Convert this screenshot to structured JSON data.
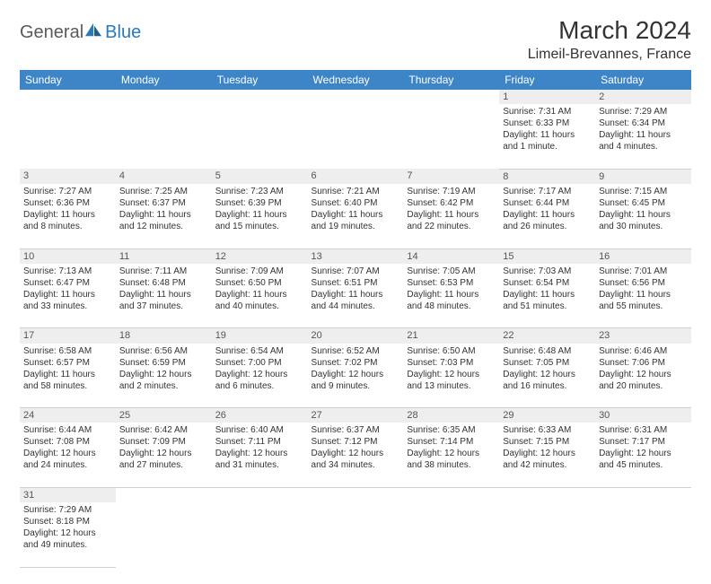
{
  "brand": {
    "part1": "General",
    "part2": "Blue"
  },
  "title": "March 2024",
  "location": "Limeil-Brevannes, France",
  "colors": {
    "header_bg": "#3d85c6",
    "header_text": "#ffffff",
    "daynum_bg": "#eeeeee",
    "text": "#333333",
    "logo_gray": "#5a5a5a",
    "logo_blue": "#2a79b8"
  },
  "weekdays": [
    "Sunday",
    "Monday",
    "Tuesday",
    "Wednesday",
    "Thursday",
    "Friday",
    "Saturday"
  ],
  "weeks": [
    [
      null,
      null,
      null,
      null,
      null,
      {
        "d": "1",
        "sr": "Sunrise: 7:31 AM",
        "ss": "Sunset: 6:33 PM",
        "dl1": "Daylight: 11 hours",
        "dl2": "and 1 minute."
      },
      {
        "d": "2",
        "sr": "Sunrise: 7:29 AM",
        "ss": "Sunset: 6:34 PM",
        "dl1": "Daylight: 11 hours",
        "dl2": "and 4 minutes."
      }
    ],
    [
      {
        "d": "3",
        "sr": "Sunrise: 7:27 AM",
        "ss": "Sunset: 6:36 PM",
        "dl1": "Daylight: 11 hours",
        "dl2": "and 8 minutes."
      },
      {
        "d": "4",
        "sr": "Sunrise: 7:25 AM",
        "ss": "Sunset: 6:37 PM",
        "dl1": "Daylight: 11 hours",
        "dl2": "and 12 minutes."
      },
      {
        "d": "5",
        "sr": "Sunrise: 7:23 AM",
        "ss": "Sunset: 6:39 PM",
        "dl1": "Daylight: 11 hours",
        "dl2": "and 15 minutes."
      },
      {
        "d": "6",
        "sr": "Sunrise: 7:21 AM",
        "ss": "Sunset: 6:40 PM",
        "dl1": "Daylight: 11 hours",
        "dl2": "and 19 minutes."
      },
      {
        "d": "7",
        "sr": "Sunrise: 7:19 AM",
        "ss": "Sunset: 6:42 PM",
        "dl1": "Daylight: 11 hours",
        "dl2": "and 22 minutes."
      },
      {
        "d": "8",
        "sr": "Sunrise: 7:17 AM",
        "ss": "Sunset: 6:44 PM",
        "dl1": "Daylight: 11 hours",
        "dl2": "and 26 minutes."
      },
      {
        "d": "9",
        "sr": "Sunrise: 7:15 AM",
        "ss": "Sunset: 6:45 PM",
        "dl1": "Daylight: 11 hours",
        "dl2": "and 30 minutes."
      }
    ],
    [
      {
        "d": "10",
        "sr": "Sunrise: 7:13 AM",
        "ss": "Sunset: 6:47 PM",
        "dl1": "Daylight: 11 hours",
        "dl2": "and 33 minutes."
      },
      {
        "d": "11",
        "sr": "Sunrise: 7:11 AM",
        "ss": "Sunset: 6:48 PM",
        "dl1": "Daylight: 11 hours",
        "dl2": "and 37 minutes."
      },
      {
        "d": "12",
        "sr": "Sunrise: 7:09 AM",
        "ss": "Sunset: 6:50 PM",
        "dl1": "Daylight: 11 hours",
        "dl2": "and 40 minutes."
      },
      {
        "d": "13",
        "sr": "Sunrise: 7:07 AM",
        "ss": "Sunset: 6:51 PM",
        "dl1": "Daylight: 11 hours",
        "dl2": "and 44 minutes."
      },
      {
        "d": "14",
        "sr": "Sunrise: 7:05 AM",
        "ss": "Sunset: 6:53 PM",
        "dl1": "Daylight: 11 hours",
        "dl2": "and 48 minutes."
      },
      {
        "d": "15",
        "sr": "Sunrise: 7:03 AM",
        "ss": "Sunset: 6:54 PM",
        "dl1": "Daylight: 11 hours",
        "dl2": "and 51 minutes."
      },
      {
        "d": "16",
        "sr": "Sunrise: 7:01 AM",
        "ss": "Sunset: 6:56 PM",
        "dl1": "Daylight: 11 hours",
        "dl2": "and 55 minutes."
      }
    ],
    [
      {
        "d": "17",
        "sr": "Sunrise: 6:58 AM",
        "ss": "Sunset: 6:57 PM",
        "dl1": "Daylight: 11 hours",
        "dl2": "and 58 minutes."
      },
      {
        "d": "18",
        "sr": "Sunrise: 6:56 AM",
        "ss": "Sunset: 6:59 PM",
        "dl1": "Daylight: 12 hours",
        "dl2": "and 2 minutes."
      },
      {
        "d": "19",
        "sr": "Sunrise: 6:54 AM",
        "ss": "Sunset: 7:00 PM",
        "dl1": "Daylight: 12 hours",
        "dl2": "and 6 minutes."
      },
      {
        "d": "20",
        "sr": "Sunrise: 6:52 AM",
        "ss": "Sunset: 7:02 PM",
        "dl1": "Daylight: 12 hours",
        "dl2": "and 9 minutes."
      },
      {
        "d": "21",
        "sr": "Sunrise: 6:50 AM",
        "ss": "Sunset: 7:03 PM",
        "dl1": "Daylight: 12 hours",
        "dl2": "and 13 minutes."
      },
      {
        "d": "22",
        "sr": "Sunrise: 6:48 AM",
        "ss": "Sunset: 7:05 PM",
        "dl1": "Daylight: 12 hours",
        "dl2": "and 16 minutes."
      },
      {
        "d": "23",
        "sr": "Sunrise: 6:46 AM",
        "ss": "Sunset: 7:06 PM",
        "dl1": "Daylight: 12 hours",
        "dl2": "and 20 minutes."
      }
    ],
    [
      {
        "d": "24",
        "sr": "Sunrise: 6:44 AM",
        "ss": "Sunset: 7:08 PM",
        "dl1": "Daylight: 12 hours",
        "dl2": "and 24 minutes."
      },
      {
        "d": "25",
        "sr": "Sunrise: 6:42 AM",
        "ss": "Sunset: 7:09 PM",
        "dl1": "Daylight: 12 hours",
        "dl2": "and 27 minutes."
      },
      {
        "d": "26",
        "sr": "Sunrise: 6:40 AM",
        "ss": "Sunset: 7:11 PM",
        "dl1": "Daylight: 12 hours",
        "dl2": "and 31 minutes."
      },
      {
        "d": "27",
        "sr": "Sunrise: 6:37 AM",
        "ss": "Sunset: 7:12 PM",
        "dl1": "Daylight: 12 hours",
        "dl2": "and 34 minutes."
      },
      {
        "d": "28",
        "sr": "Sunrise: 6:35 AM",
        "ss": "Sunset: 7:14 PM",
        "dl1": "Daylight: 12 hours",
        "dl2": "and 38 minutes."
      },
      {
        "d": "29",
        "sr": "Sunrise: 6:33 AM",
        "ss": "Sunset: 7:15 PM",
        "dl1": "Daylight: 12 hours",
        "dl2": "and 42 minutes."
      },
      {
        "d": "30",
        "sr": "Sunrise: 6:31 AM",
        "ss": "Sunset: 7:17 PM",
        "dl1": "Daylight: 12 hours",
        "dl2": "and 45 minutes."
      }
    ],
    [
      {
        "d": "31",
        "sr": "Sunrise: 7:29 AM",
        "ss": "Sunset: 8:18 PM",
        "dl1": "Daylight: 12 hours",
        "dl2": "and 49 minutes."
      },
      null,
      null,
      null,
      null,
      null,
      null
    ]
  ]
}
